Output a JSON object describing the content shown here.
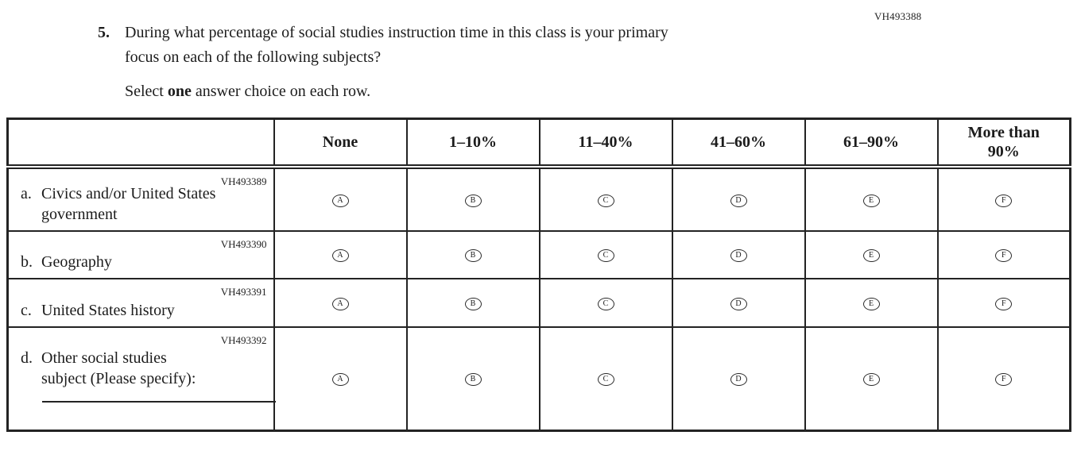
{
  "page": {
    "code": "VH493388"
  },
  "question": {
    "number": "5.",
    "line1": "During what percentage of social studies instruction time in this class is your primary",
    "line2": "focus on each of the following subjects?",
    "instruction_prefix": "Select ",
    "instruction_bold": "one",
    "instruction_suffix": " answer choice on each row."
  },
  "table": {
    "column_headers": [
      "None",
      "1–10%",
      "11–40%",
      "41–60%",
      "61–90%",
      "More than 90%"
    ],
    "option_letters": [
      "A",
      "B",
      "C",
      "D",
      "E",
      "F"
    ],
    "rows": [
      {
        "code": "VH493389",
        "letter": "a.",
        "label": "Civics and/or United States government"
      },
      {
        "code": "VH493390",
        "letter": "b.",
        "label": "Geography"
      },
      {
        "code": "VH493391",
        "letter": "c.",
        "label": "United States history"
      },
      {
        "code": "VH493392",
        "letter": "d.",
        "label": "Other social studies subject (Please specify):"
      }
    ]
  }
}
